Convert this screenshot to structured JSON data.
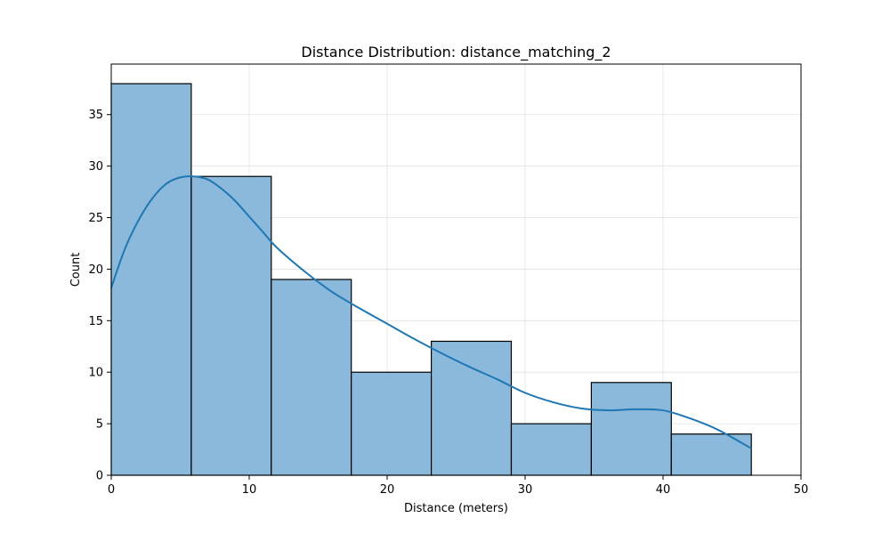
{
  "chart_data": {
    "type": "histogram",
    "title": "Distance Distribution: distance_matching_2",
    "xlabel": "Distance (meters)",
    "ylabel": "Count",
    "xlim": [
      0,
      50
    ],
    "ylim": [
      0,
      39.9
    ],
    "xticks": [
      0,
      10,
      20,
      30,
      40,
      50
    ],
    "yticks": [
      0,
      5,
      10,
      15,
      20,
      25,
      30,
      35
    ],
    "grid": true,
    "bins": [
      {
        "x0": 0.0,
        "x1": 5.8,
        "count": 38
      },
      {
        "x0": 5.8,
        "x1": 11.6,
        "count": 29
      },
      {
        "x0": 11.6,
        "x1": 17.4,
        "count": 19
      },
      {
        "x0": 17.4,
        "x1": 23.2,
        "count": 10
      },
      {
        "x0": 23.2,
        "x1": 29.0,
        "count": 13
      },
      {
        "x0": 29.0,
        "x1": 34.8,
        "count": 5
      },
      {
        "x0": 34.8,
        "x1": 40.6,
        "count": 9
      },
      {
        "x0": 40.6,
        "x1": 46.4,
        "count": 4
      }
    ],
    "kde": {
      "x": [
        0,
        1,
        2,
        3,
        4,
        5,
        6,
        7,
        8,
        9,
        10,
        11,
        12,
        14,
        16,
        18,
        20,
        22,
        24,
        26,
        28,
        30,
        32,
        34,
        36,
        38,
        40,
        42,
        44,
        46.4
      ],
      "y": [
        18.2,
        22.0,
        24.8,
        26.9,
        28.3,
        28.9,
        29.0,
        28.7,
        27.8,
        26.6,
        25.1,
        23.6,
        22.1,
        19.8,
        17.8,
        16.2,
        14.7,
        13.2,
        11.8,
        10.5,
        9.3,
        8.0,
        7.1,
        6.5,
        6.3,
        6.4,
        6.3,
        5.5,
        4.4,
        2.6
      ]
    },
    "colors": {
      "bar_fill": "#8ab9db",
      "line": "#1f77b4"
    }
  }
}
